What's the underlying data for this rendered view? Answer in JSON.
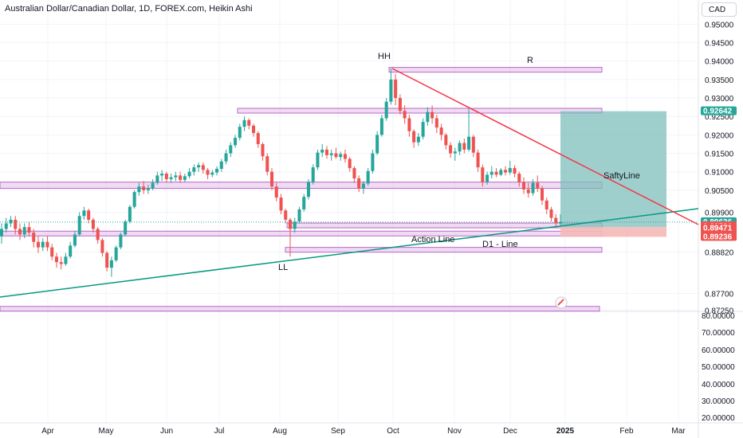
{
  "header": {
    "title": "Australian Dollar/Canadian Dollar, 1D, FOREX.com, Heikin Ashi",
    "currency": "CAD"
  },
  "colors": {
    "up": "#26a69a",
    "down": "#ef5350",
    "zone_fill": "#e1bee7",
    "zone_stroke": "#ba68c8",
    "target_zone": "#7fbfbb",
    "stop_zone": "#f4b8b6",
    "support_line": "#089981",
    "resistance_line": "#f23645"
  },
  "chart_data": {
    "type": "candlestick",
    "subtype": "Heikin Ashi",
    "symbol": "AUDCAD",
    "timeframe": "1D",
    "source": "FOREX.com",
    "y_axis": {
      "ticks": [
        "0.95000",
        "0.94500",
        "0.94000",
        "0.93500",
        "0.93000",
        "0.92500",
        "0.92000",
        "0.91500",
        "0.91000",
        "0.90500",
        "0.89900",
        "0.88820",
        "0.87700",
        "0.87250"
      ],
      "range": [
        0.872,
        0.953
      ]
    },
    "lower_axis_ticks": [
      "80.00000",
      "70.00000",
      "60.00000",
      "50.00000",
      "40.00000",
      "30.00000",
      "20.00000"
    ],
    "x_axis_ticks": [
      "Apr",
      "May",
      "Jun",
      "Jul",
      "Aug",
      "Sep",
      "Oct",
      "Nov",
      "Dec",
      "2025",
      "Feb",
      "Mar"
    ],
    "price_labels": [
      {
        "value": "0.92642",
        "color": "#26a69a"
      },
      {
        "value": "0.89636",
        "color": "#26a69a",
        "countdown": "07:55:29"
      },
      {
        "value": "0.89526",
        "color": "#ef5350"
      },
      {
        "value": "0.89471",
        "color": "#ef5350"
      },
      {
        "value": "0.89236",
        "color": "#ef5350"
      }
    ],
    "annotations": [
      {
        "text": "HH"
      },
      {
        "text": "R"
      },
      {
        "text": "LL"
      },
      {
        "text": "SaftyLine"
      },
      {
        "text": "Action Line"
      },
      {
        "text": "D1 - Line"
      }
    ],
    "candles_ohlc": [
      [
        0.8925,
        0.896,
        0.8905,
        0.8945
      ],
      [
        0.8945,
        0.8975,
        0.8935,
        0.896
      ],
      [
        0.896,
        0.898,
        0.895,
        0.897
      ],
      [
        0.897,
        0.898,
        0.893,
        0.8945
      ],
      [
        0.8945,
        0.896,
        0.8915,
        0.893
      ],
      [
        0.893,
        0.896,
        0.892,
        0.895
      ],
      [
        0.895,
        0.8965,
        0.8925,
        0.8935
      ],
      [
        0.8935,
        0.8945,
        0.8895,
        0.891
      ],
      [
        0.891,
        0.8925,
        0.888,
        0.8895
      ],
      [
        0.8895,
        0.892,
        0.8885,
        0.891
      ],
      [
        0.891,
        0.8925,
        0.8885,
        0.8895
      ],
      [
        0.8895,
        0.8905,
        0.886,
        0.887
      ],
      [
        0.887,
        0.888,
        0.884,
        0.8855
      ],
      [
        0.8855,
        0.887,
        0.8835,
        0.885
      ],
      [
        0.885,
        0.888,
        0.8845,
        0.887
      ],
      [
        0.887,
        0.891,
        0.8865,
        0.89
      ],
      [
        0.89,
        0.894,
        0.8895,
        0.893
      ],
      [
        0.893,
        0.899,
        0.8925,
        0.898
      ],
      [
        0.898,
        0.9005,
        0.897,
        0.8995
      ],
      [
        0.8995,
        0.9,
        0.896,
        0.897
      ],
      [
        0.897,
        0.8975,
        0.8935,
        0.8945
      ],
      [
        0.8945,
        0.895,
        0.8905,
        0.8915
      ],
      [
        0.8915,
        0.892,
        0.887,
        0.888
      ],
      [
        0.888,
        0.8885,
        0.883,
        0.884
      ],
      [
        0.884,
        0.887,
        0.8815,
        0.886
      ],
      [
        0.886,
        0.89,
        0.8855,
        0.8895
      ],
      [
        0.8895,
        0.8935,
        0.889,
        0.893
      ],
      [
        0.893,
        0.897,
        0.8925,
        0.8965
      ],
      [
        0.8965,
        0.901,
        0.896,
        0.9005
      ],
      [
        0.9005,
        0.905,
        0.9,
        0.9045
      ],
      [
        0.9045,
        0.907,
        0.9035,
        0.906
      ],
      [
        0.906,
        0.9075,
        0.904,
        0.905
      ],
      [
        0.905,
        0.9065,
        0.904,
        0.9055
      ],
      [
        0.9055,
        0.908,
        0.905,
        0.907
      ],
      [
        0.907,
        0.91,
        0.9065,
        0.909
      ],
      [
        0.909,
        0.9105,
        0.9075,
        0.9095
      ],
      [
        0.9095,
        0.91,
        0.907,
        0.908
      ],
      [
        0.908,
        0.9095,
        0.907,
        0.9085
      ],
      [
        0.9085,
        0.91,
        0.9075,
        0.909
      ],
      [
        0.909,
        0.91,
        0.907,
        0.9078
      ],
      [
        0.9078,
        0.9095,
        0.9072,
        0.9088
      ],
      [
        0.9088,
        0.911,
        0.9082,
        0.91
      ],
      [
        0.91,
        0.912,
        0.909,
        0.9112
      ],
      [
        0.9112,
        0.9125,
        0.91,
        0.9118
      ],
      [
        0.9118,
        0.9125,
        0.9095,
        0.9105
      ],
      [
        0.9105,
        0.911,
        0.908,
        0.9092
      ],
      [
        0.9092,
        0.9105,
        0.9085,
        0.9098
      ],
      [
        0.9098,
        0.9115,
        0.909,
        0.9108
      ],
      [
        0.9108,
        0.9135,
        0.91,
        0.9128
      ],
      [
        0.9128,
        0.916,
        0.912,
        0.915
      ],
      [
        0.915,
        0.918,
        0.914,
        0.9172
      ],
      [
        0.9172,
        0.92,
        0.9165,
        0.9192
      ],
      [
        0.9192,
        0.923,
        0.9185,
        0.9222
      ],
      [
        0.9222,
        0.925,
        0.921,
        0.924
      ],
      [
        0.924,
        0.9245,
        0.9215,
        0.9225
      ],
      [
        0.9225,
        0.923,
        0.9195,
        0.9205
      ],
      [
        0.9205,
        0.921,
        0.9165,
        0.9175
      ],
      [
        0.9175,
        0.918,
        0.913,
        0.9142
      ],
      [
        0.9142,
        0.915,
        0.909,
        0.91
      ],
      [
        0.91,
        0.911,
        0.905,
        0.906
      ],
      [
        0.906,
        0.907,
        0.902,
        0.903
      ],
      [
        0.903,
        0.904,
        0.8985,
        0.8995
      ],
      [
        0.8995,
        0.9,
        0.896,
        0.897
      ],
      [
        0.897,
        0.8975,
        0.887,
        0.8945
      ],
      [
        0.8945,
        0.8975,
        0.8935,
        0.8965
      ],
      [
        0.8965,
        0.9005,
        0.896,
        0.8998
      ],
      [
        0.8998,
        0.904,
        0.8992,
        0.9032
      ],
      [
        0.9032,
        0.908,
        0.9025,
        0.9072
      ],
      [
        0.9072,
        0.912,
        0.9065,
        0.9112
      ],
      [
        0.9112,
        0.916,
        0.9105,
        0.9152
      ],
      [
        0.9152,
        0.9175,
        0.914,
        0.916
      ],
      [
        0.916,
        0.917,
        0.9135,
        0.9145
      ],
      [
        0.9145,
        0.916,
        0.913,
        0.915
      ],
      [
        0.915,
        0.9165,
        0.9135,
        0.914
      ],
      [
        0.914,
        0.9155,
        0.913,
        0.9148
      ],
      [
        0.9148,
        0.916,
        0.9125,
        0.9135
      ],
      [
        0.9135,
        0.914,
        0.91,
        0.911
      ],
      [
        0.911,
        0.9115,
        0.907,
        0.9082
      ],
      [
        0.9082,
        0.909,
        0.9045,
        0.9055
      ],
      [
        0.9055,
        0.9075,
        0.904,
        0.9068
      ],
      [
        0.9068,
        0.911,
        0.9062,
        0.9102
      ],
      [
        0.9102,
        0.916,
        0.9095,
        0.915
      ],
      [
        0.915,
        0.921,
        0.9145,
        0.92
      ],
      [
        0.92,
        0.9255,
        0.9195,
        0.9245
      ],
      [
        0.9245,
        0.93,
        0.9238,
        0.929
      ],
      [
        0.929,
        0.938,
        0.9282,
        0.935
      ],
      [
        0.935,
        0.9365,
        0.928,
        0.93
      ],
      [
        0.93,
        0.931,
        0.9255,
        0.9265
      ],
      [
        0.9265,
        0.928,
        0.923,
        0.9245
      ],
      [
        0.9245,
        0.9255,
        0.9195,
        0.921
      ],
      [
        0.921,
        0.9215,
        0.9165,
        0.918
      ],
      [
        0.918,
        0.9205,
        0.917,
        0.9195
      ],
      [
        0.9195,
        0.9245,
        0.9188,
        0.9235
      ],
      [
        0.9235,
        0.9275,
        0.9225,
        0.9262
      ],
      [
        0.9262,
        0.928,
        0.923,
        0.9245
      ],
      [
        0.9245,
        0.9255,
        0.9205,
        0.922
      ],
      [
        0.922,
        0.923,
        0.9185,
        0.92
      ],
      [
        0.92,
        0.9205,
        0.916,
        0.9172
      ],
      [
        0.9172,
        0.918,
        0.9138,
        0.915
      ],
      [
        0.915,
        0.9165,
        0.913,
        0.9155
      ],
      [
        0.9155,
        0.9185,
        0.9145,
        0.9178
      ],
      [
        0.9178,
        0.919,
        0.915,
        0.916
      ],
      [
        0.916,
        0.927,
        0.9155,
        0.9195
      ],
      [
        0.9195,
        0.92,
        0.914,
        0.9152
      ],
      [
        0.9152,
        0.916,
        0.91,
        0.9112
      ],
      [
        0.9112,
        0.912,
        0.906,
        0.9072
      ],
      [
        0.9072,
        0.91,
        0.9065,
        0.9092
      ],
      [
        0.9092,
        0.9115,
        0.9082,
        0.91
      ],
      [
        0.91,
        0.911,
        0.9085,
        0.9092
      ],
      [
        0.9092,
        0.911,
        0.9088,
        0.9105
      ],
      [
        0.9105,
        0.9115,
        0.909,
        0.9098
      ],
      [
        0.9098,
        0.913,
        0.9092,
        0.911
      ],
      [
        0.911,
        0.9118,
        0.9085,
        0.9095
      ],
      [
        0.9095,
        0.91,
        0.906,
        0.9072
      ],
      [
        0.9072,
        0.9085,
        0.904,
        0.9052
      ],
      [
        0.9052,
        0.907,
        0.903,
        0.9042
      ],
      [
        0.9042,
        0.908,
        0.9035,
        0.907
      ],
      [
        0.907,
        0.909,
        0.9045,
        0.9055
      ],
      [
        0.9055,
        0.9062,
        0.901,
        0.9022
      ],
      [
        0.9022,
        0.903,
        0.8985,
        0.8998
      ],
      [
        0.8998,
        0.9005,
        0.8965,
        0.8975
      ],
      [
        0.8975,
        0.8985,
        0.895,
        0.896
      ],
      [
        0.896,
        0.8985,
        0.8955,
        0.8964
      ]
    ],
    "zones": [
      {
        "from": 0.9383,
        "to": 0.9376
      },
      {
        "from": 0.9272,
        "to": 0.926
      },
      {
        "from": 0.9072,
        "to": 0.9055
      },
      {
        "from": 0.8961,
        "to": 0.8949
      },
      {
        "from": 0.8939,
        "to": 0.8928
      },
      {
        "from": 0.8895,
        "to": 0.8888
      },
      {
        "from": 0.8735,
        "to": 0.8728
      }
    ],
    "position": {
      "entry": 0.895,
      "target": 0.92642,
      "stop": 0.89236
    }
  }
}
